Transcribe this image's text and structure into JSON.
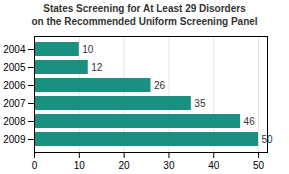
{
  "chart_data": {
    "type": "bar",
    "orientation": "horizontal",
    "title": "States Screening for At Least 29 Disorders\non the Recommended Uniform Screening Panel",
    "categories": [
      "2004",
      "2005",
      "2006",
      "2007",
      "2008",
      "2009"
    ],
    "values": [
      10,
      12,
      26,
      35,
      46,
      50
    ],
    "color": "#1a9080",
    "xlim": [
      0,
      52
    ],
    "xticks": [
      0,
      10,
      20,
      30,
      40,
      50
    ],
    "grid": true,
    "data_labels": true
  }
}
